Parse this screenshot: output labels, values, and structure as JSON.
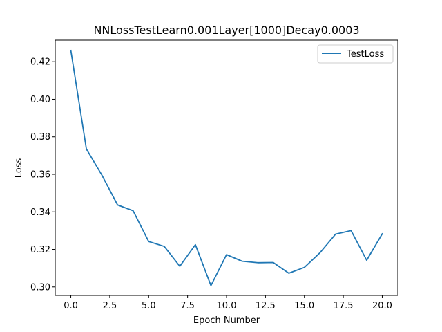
{
  "chart_data": {
    "type": "line",
    "title": "NNLossTestLearn0.001Layer[1000]Decay0.0003",
    "xlabel": "Epoch Number",
    "ylabel": "Loss",
    "xlim": [
      -1.0,
      21.0
    ],
    "ylim": [
      0.2955,
      0.4315
    ],
    "xticks": [
      0.0,
      2.5,
      5.0,
      7.5,
      10.0,
      12.5,
      15.0,
      17.5,
      20.0
    ],
    "xtick_labels": [
      "0.0",
      "2.5",
      "5.0",
      "7.5",
      "10.0",
      "12.5",
      "15.0",
      "17.5",
      "20.0"
    ],
    "yticks": [
      0.3,
      0.32,
      0.34,
      0.36,
      0.38,
      0.4,
      0.42
    ],
    "ytick_labels": [
      "0.30",
      "0.32",
      "0.34",
      "0.36",
      "0.38",
      "0.40",
      "0.42"
    ],
    "grid": false,
    "legend_position": "top-right",
    "x": [
      0,
      1,
      2,
      3,
      4,
      5,
      6,
      7,
      8,
      9,
      10,
      11,
      12,
      13,
      14,
      15,
      16,
      17,
      18,
      19,
      20
    ],
    "series": [
      {
        "name": "TestLoss",
        "color": "#1f77b4",
        "values": [
          0.426,
          0.3735,
          0.3595,
          0.3437,
          0.3406,
          0.3242,
          0.3216,
          0.311,
          0.3225,
          0.3007,
          0.3172,
          0.3137,
          0.3129,
          0.313,
          0.3073,
          0.3104,
          0.3182,
          0.3281,
          0.33,
          0.3142,
          0.3283
        ]
      }
    ]
  }
}
